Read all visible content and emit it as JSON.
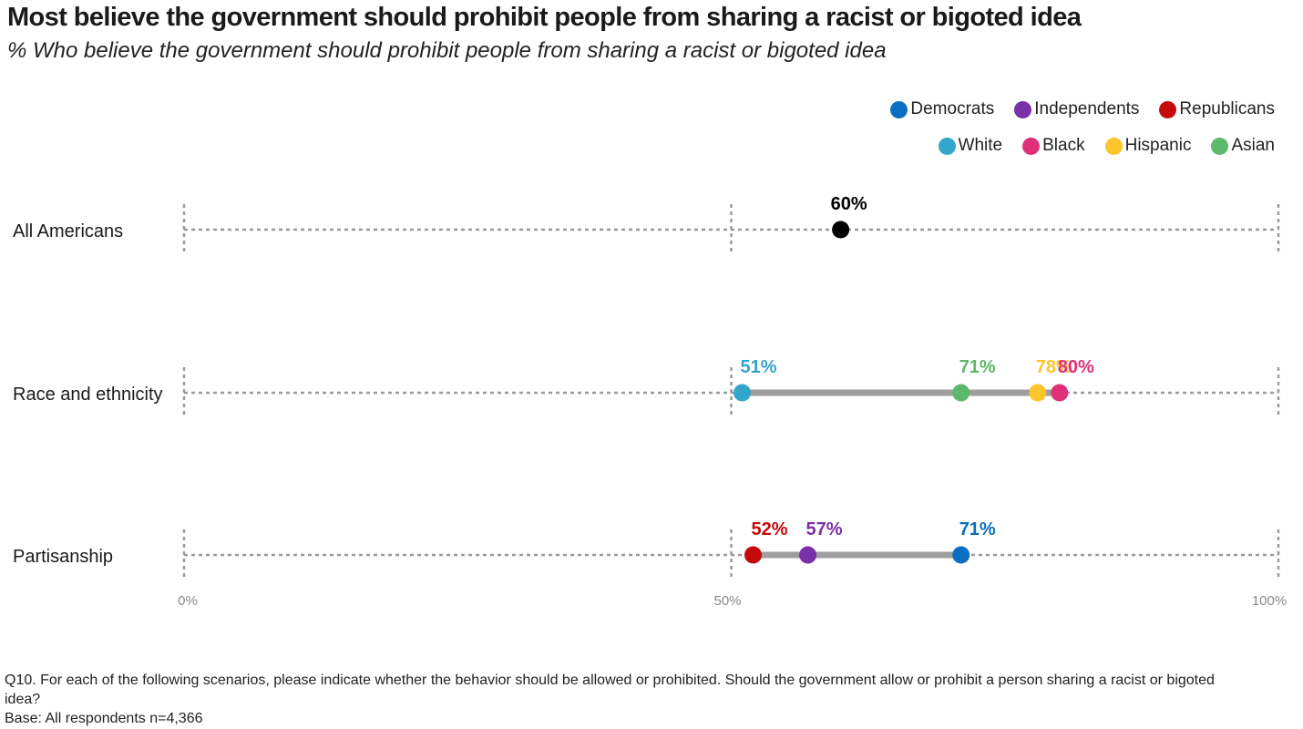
{
  "title": "Most believe the government should prohibit people from sharing a racist or bigoted idea",
  "subtitle": "% Who believe the government should prohibit people from sharing a racist or bigoted idea",
  "legend": {
    "row1": [
      {
        "label": "Democrats",
        "color": "#0a6fc2"
      },
      {
        "label": "Independents",
        "color": "#7a30a8"
      },
      {
        "label": "Republicans",
        "color": "#c40a0a"
      }
    ],
    "row2": [
      {
        "label": "White",
        "color": "#33a6cc"
      },
      {
        "label": "Black",
        "color": "#e0307a"
      },
      {
        "label": "Hispanic",
        "color": "#fcc52d"
      },
      {
        "label": "Asian",
        "color": "#5cb86a"
      }
    ]
  },
  "chart_data": {
    "type": "dot-plot",
    "xlim": [
      0,
      100
    ],
    "x_ticks": [
      "0%",
      "50%",
      "100%"
    ],
    "x_tick_values": [
      0,
      50,
      100
    ],
    "grid": true,
    "legend_position": "top-right",
    "rows": [
      {
        "label": "All Americans",
        "points": [
          {
            "series": "All Americans",
            "value": 60,
            "label": "60%",
            "color": "#000000"
          }
        ]
      },
      {
        "label": "Race and ethnicity",
        "points": [
          {
            "series": "White",
            "value": 51,
            "label": "51%",
            "color": "#33a6cc"
          },
          {
            "series": "Asian",
            "value": 71,
            "label": "71%",
            "color": "#5cb86a"
          },
          {
            "series": "Hispanic",
            "value": 78,
            "label": "78%",
            "color": "#fcc52d"
          },
          {
            "series": "Black",
            "value": 80,
            "label": "80%",
            "color": "#e0307a"
          }
        ]
      },
      {
        "label": "Partisanship",
        "points": [
          {
            "series": "Republicans",
            "value": 52,
            "label": "52%",
            "color": "#c40a0a"
          },
          {
            "series": "Independents",
            "value": 57,
            "label": "57%",
            "color": "#7a30a8"
          },
          {
            "series": "Democrats",
            "value": 71,
            "label": "71%",
            "color": "#0a6fc2"
          }
        ]
      }
    ]
  },
  "footnote": {
    "question": "Q10. For each of the following scenarios, please indicate whether the behavior should be allowed or prohibited. Should the government allow or prohibit a person sharing a racist or bigoted idea?",
    "base": "Base: All respondents n=4,366"
  }
}
